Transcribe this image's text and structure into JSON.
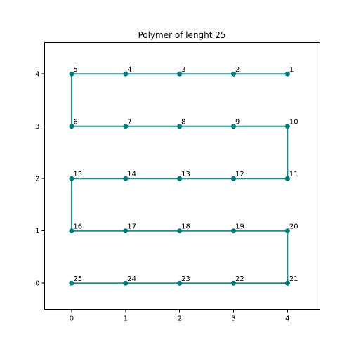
{
  "chart_data": {
    "type": "line",
    "title": "Polymer of lenght 25",
    "xlabel": "",
    "ylabel": "",
    "xlim": [
      -0.5,
      4.6
    ],
    "ylim": [
      -0.5,
      4.6
    ],
    "xticks": [
      0,
      1,
      2,
      3,
      4
    ],
    "yticks": [
      0,
      1,
      2,
      3,
      4
    ],
    "grid": false,
    "line_color": "#2a8b89",
    "marker_color": "#007b7b",
    "points": [
      {
        "label": "1",
        "x": 4,
        "y": 4
      },
      {
        "label": "2",
        "x": 3,
        "y": 4
      },
      {
        "label": "3",
        "x": 2,
        "y": 4
      },
      {
        "label": "4",
        "x": 1,
        "y": 4
      },
      {
        "label": "5",
        "x": 0,
        "y": 4
      },
      {
        "label": "6",
        "x": 0,
        "y": 3
      },
      {
        "label": "7",
        "x": 1,
        "y": 3
      },
      {
        "label": "8",
        "x": 2,
        "y": 3
      },
      {
        "label": "9",
        "x": 3,
        "y": 3
      },
      {
        "label": "10",
        "x": 4,
        "y": 3
      },
      {
        "label": "11",
        "x": 4,
        "y": 2
      },
      {
        "label": "12",
        "x": 3,
        "y": 2
      },
      {
        "label": "13",
        "x": 2,
        "y": 2
      },
      {
        "label": "14",
        "x": 1,
        "y": 2
      },
      {
        "label": "15",
        "x": 0,
        "y": 2
      },
      {
        "label": "16",
        "x": 0,
        "y": 1
      },
      {
        "label": "17",
        "x": 1,
        "y": 1
      },
      {
        "label": "18",
        "x": 2,
        "y": 1
      },
      {
        "label": "19",
        "x": 3,
        "y": 1
      },
      {
        "label": "20",
        "x": 4,
        "y": 1
      },
      {
        "label": "21",
        "x": 4,
        "y": 0
      },
      {
        "label": "22",
        "x": 3,
        "y": 0
      },
      {
        "label": "23",
        "x": 2,
        "y": 0
      },
      {
        "label": "24",
        "x": 1,
        "y": 0
      },
      {
        "label": "25",
        "x": 0,
        "y": 0
      }
    ]
  }
}
